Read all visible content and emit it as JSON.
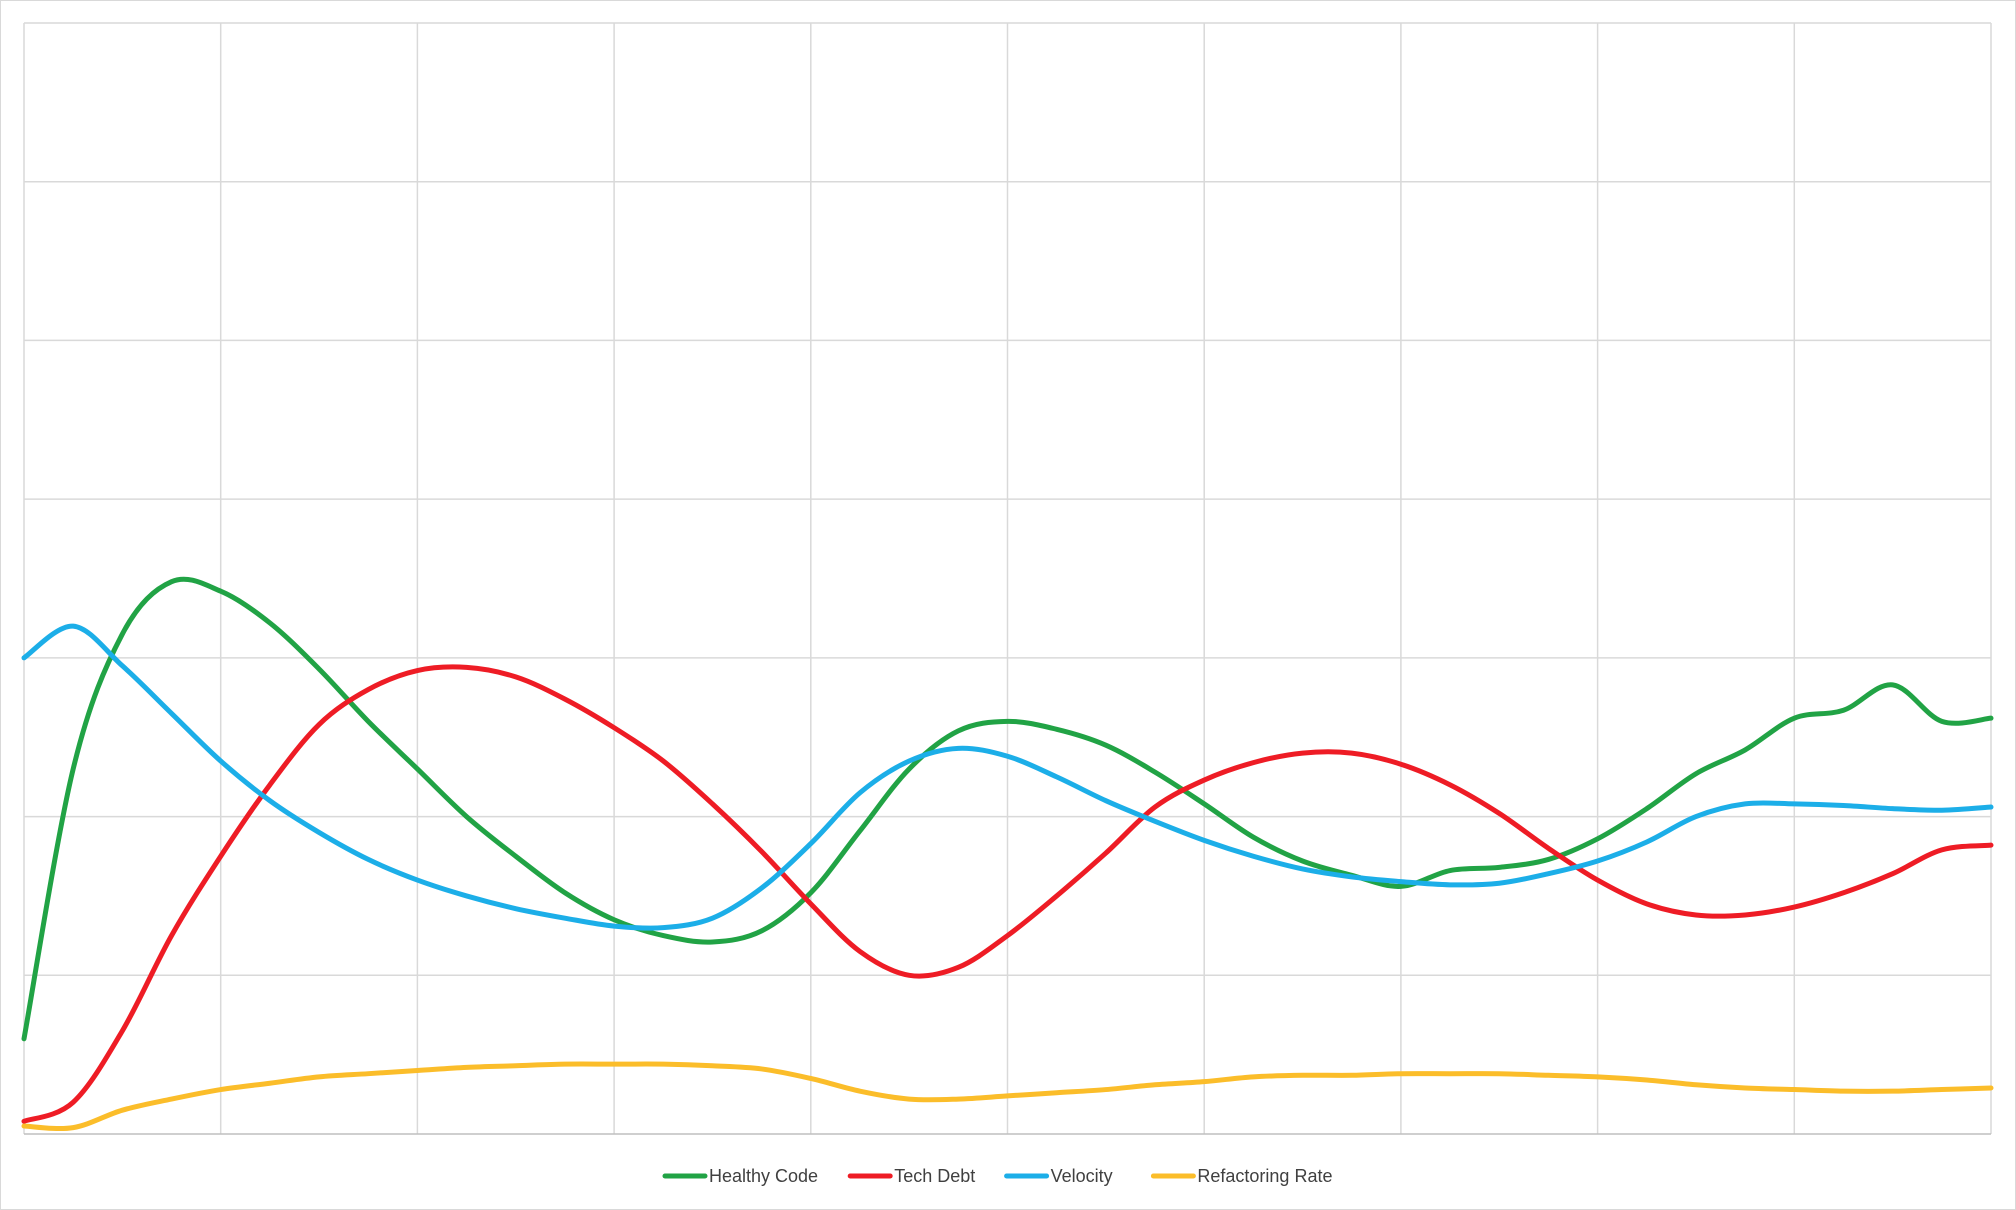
{
  "chart_data": {
    "type": "line",
    "title": "",
    "xlabel": "",
    "ylabel": "",
    "x_count": 11,
    "xlim": [
      0,
      10
    ],
    "ylim": [
      0,
      7
    ],
    "grid": true,
    "tick_labels_visible": false,
    "legend_position": "bottom",
    "x": [
      0,
      0.25,
      0.5,
      0.75,
      1,
      1.25,
      1.5,
      1.75,
      2,
      2.25,
      2.5,
      2.75,
      3,
      3.25,
      3.5,
      3.75,
      4,
      4.25,
      4.5,
      4.75,
      5,
      5.25,
      5.5,
      5.75,
      6,
      6.25,
      6.5,
      6.75,
      7,
      7.25,
      7.5,
      7.75,
      8,
      8.25,
      8.5,
      8.75,
      9,
      9.25,
      9.5,
      9.75,
      10
    ],
    "series": [
      {
        "name": "Healthy Code",
        "color": "#21a345",
        "values": [
          0.6,
          2.3,
          3.15,
          3.48,
          3.42,
          3.22,
          2.93,
          2.6,
          2.3,
          2.0,
          1.75,
          1.52,
          1.35,
          1.25,
          1.21,
          1.28,
          1.52,
          1.91,
          2.3,
          2.54,
          2.6,
          2.55,
          2.45,
          2.28,
          2.08,
          1.87,
          1.72,
          1.63,
          1.56,
          1.66,
          1.68,
          1.73,
          1.86,
          2.05,
          2.27,
          2.42,
          2.62,
          2.67,
          2.83,
          2.6,
          2.62
        ]
      },
      {
        "name": "Tech Debt",
        "color": "#ee1c25",
        "values": [
          0.08,
          0.2,
          0.65,
          1.25,
          1.75,
          2.2,
          2.58,
          2.8,
          2.92,
          2.94,
          2.88,
          2.74,
          2.56,
          2.35,
          2.08,
          1.78,
          1.45,
          1.15,
          1.0,
          1.05,
          1.25,
          1.5,
          1.77,
          2.06,
          2.23,
          2.34,
          2.4,
          2.4,
          2.33,
          2.2,
          2.02,
          1.8,
          1.6,
          1.45,
          1.38,
          1.38,
          1.43,
          1.52,
          1.64,
          1.79,
          1.82
        ]
      },
      {
        "name": "Velocity",
        "color": "#1caee8",
        "values": [
          3.0,
          3.2,
          2.95,
          2.65,
          2.35,
          2.1,
          1.9,
          1.73,
          1.6,
          1.5,
          1.42,
          1.36,
          1.31,
          1.3,
          1.36,
          1.55,
          1.83,
          2.15,
          2.35,
          2.43,
          2.38,
          2.25,
          2.1,
          1.97,
          1.85,
          1.75,
          1.67,
          1.62,
          1.59,
          1.57,
          1.58,
          1.64,
          1.72,
          1.84,
          2.0,
          2.08,
          2.08,
          2.07,
          2.05,
          2.04,
          2.06
        ]
      },
      {
        "name": "Refactoring Rate",
        "color": "#fbbd2a",
        "values": [
          0.05,
          0.04,
          0.15,
          0.22,
          0.28,
          0.32,
          0.36,
          0.38,
          0.4,
          0.42,
          0.43,
          0.44,
          0.44,
          0.44,
          0.43,
          0.41,
          0.35,
          0.27,
          0.22,
          0.22,
          0.24,
          0.26,
          0.28,
          0.31,
          0.33,
          0.36,
          0.37,
          0.37,
          0.38,
          0.38,
          0.38,
          0.37,
          0.36,
          0.34,
          0.31,
          0.29,
          0.28,
          0.27,
          0.27,
          0.28,
          0.29
        ]
      }
    ]
  }
}
